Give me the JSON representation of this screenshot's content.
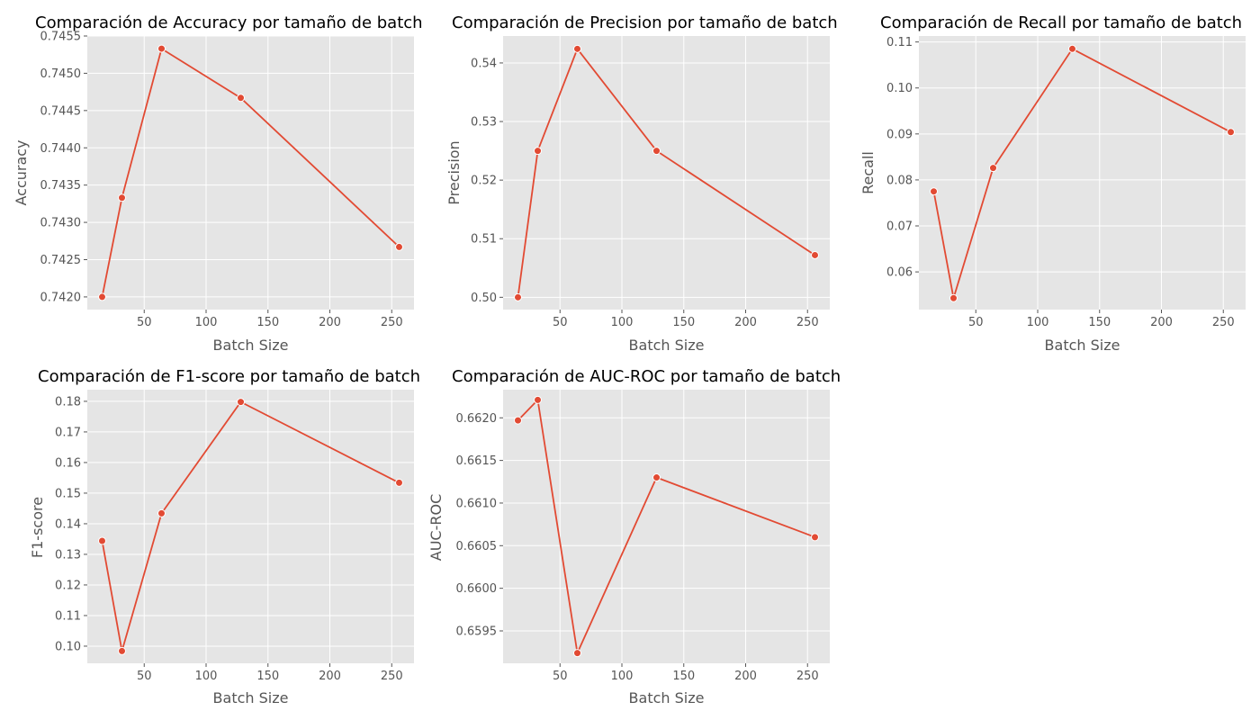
{
  "figure": {
    "background": "#ffffff",
    "panel_background": "#e5e5e5",
    "grid_color": "#ffffff",
    "tick_color": "#555555",
    "line_color": "#e24a33"
  },
  "chart_data": [
    {
      "type": "line",
      "title": "Comparación de Accuracy por tamaño de batch",
      "xlabel": "Batch Size",
      "ylabel": "Accuracy",
      "x": [
        16,
        32,
        64,
        128,
        256
      ],
      "series": [
        {
          "values": [
            0.742,
            0.74333,
            0.74533,
            0.74467,
            0.74267
          ]
        }
      ],
      "xticks": [
        "50",
        "100",
        "150",
        "200",
        "250"
      ],
      "yticks": [
        "0.7420",
        "0.7425",
        "0.7430",
        "0.7435",
        "0.7440",
        "0.7445",
        "0.7450",
        "0.7455"
      ],
      "xlim": [
        4,
        268
      ],
      "ylim": [
        0.74183,
        0.7455
      ],
      "grid": true
    },
    {
      "type": "line",
      "title": "Comparación de Precision por tamaño de batch",
      "xlabel": "Batch Size",
      "ylabel": "Precision",
      "x": [
        16,
        32,
        64,
        128,
        256
      ],
      "series": [
        {
          "values": [
            0.5,
            0.525,
            0.5424,
            0.525,
            0.5072
          ]
        }
      ],
      "xticks": [
        "50",
        "100",
        "150",
        "200",
        "250"
      ],
      "yticks": [
        "0.50",
        "0.51",
        "0.52",
        "0.53",
        "0.54"
      ],
      "xlim": [
        4,
        268
      ],
      "ylim": [
        0.4979,
        0.5446
      ],
      "grid": true
    },
    {
      "type": "line",
      "title": "Comparación de Recall por tamaño de batch",
      "xlabel": "Batch Size",
      "ylabel": "Recall",
      "x": [
        16,
        32,
        64,
        128,
        256
      ],
      "series": [
        {
          "values": [
            0.0775,
            0.0543,
            0.0826,
            0.1085,
            0.0904
          ]
        }
      ],
      "xticks": [
        "50",
        "100",
        "150",
        "200",
        "250"
      ],
      "yticks": [
        "0.06",
        "0.07",
        "0.08",
        "0.09",
        "0.10",
        "0.11"
      ],
      "xlim": [
        4,
        268
      ],
      "ylim": [
        0.0518,
        0.1113
      ],
      "grid": true
    },
    {
      "type": "line",
      "title": "Comparación de F1-score por tamaño de batch",
      "xlabel": "Batch Size",
      "ylabel": "F1-score",
      "x": [
        16,
        32,
        64,
        128,
        256
      ],
      "series": [
        {
          "values": [
            0.1344,
            0.0984,
            0.1434,
            0.1798,
            0.1534
          ]
        }
      ],
      "xticks": [
        "50",
        "100",
        "150",
        "200",
        "250"
      ],
      "yticks": [
        "0.10",
        "0.11",
        "0.12",
        "0.13",
        "0.14",
        "0.15",
        "0.16",
        "0.17",
        "0.18"
      ],
      "xlim": [
        4,
        268
      ],
      "ylim": [
        0.0944,
        0.1838
      ],
      "grid": true
    },
    {
      "type": "line",
      "title": "Comparación de AUC-ROC por tamaño de batch",
      "xlabel": "Batch Size",
      "ylabel": "AUC-ROC",
      "x": [
        16,
        32,
        64,
        128,
        256
      ],
      "series": [
        {
          "values": [
            0.66197,
            0.66221,
            0.65924,
            0.6613,
            0.6606
          ]
        }
      ],
      "xticks": [
        "50",
        "100",
        "150",
        "200",
        "250"
      ],
      "yticks": [
        "0.6595",
        "0.6600",
        "0.6605",
        "0.6610",
        "0.6615",
        "0.6620"
      ],
      "xlim": [
        4,
        268
      ],
      "ylim": [
        0.65912,
        0.66233
      ],
      "grid": true
    }
  ]
}
